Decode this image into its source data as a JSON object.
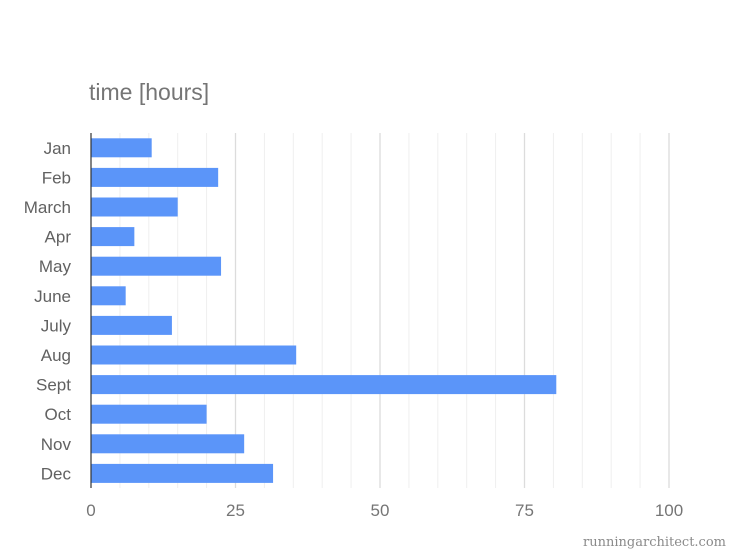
{
  "chart_data": {
    "type": "bar",
    "orientation": "horizontal",
    "title": "time [hours]",
    "xlabel": "",
    "ylabel": "",
    "categories": [
      "Jan",
      "Feb",
      "March",
      "Apr",
      "May",
      "June",
      "July",
      "Aug",
      "Sept",
      "Oct",
      "Nov",
      "Dec"
    ],
    "values": [
      10.5,
      22,
      15,
      7.5,
      22.5,
      6,
      14,
      35.5,
      80.5,
      20,
      26.5,
      31.5
    ],
    "xlim": [
      0,
      100
    ],
    "xticks": [
      "0",
      "25",
      "50",
      "75",
      "100"
    ],
    "minor_gridlines": true,
    "bar_color": "#5b95f9",
    "grid_color": "#e6e6e6"
  },
  "watermark": "runningarchitect.com"
}
